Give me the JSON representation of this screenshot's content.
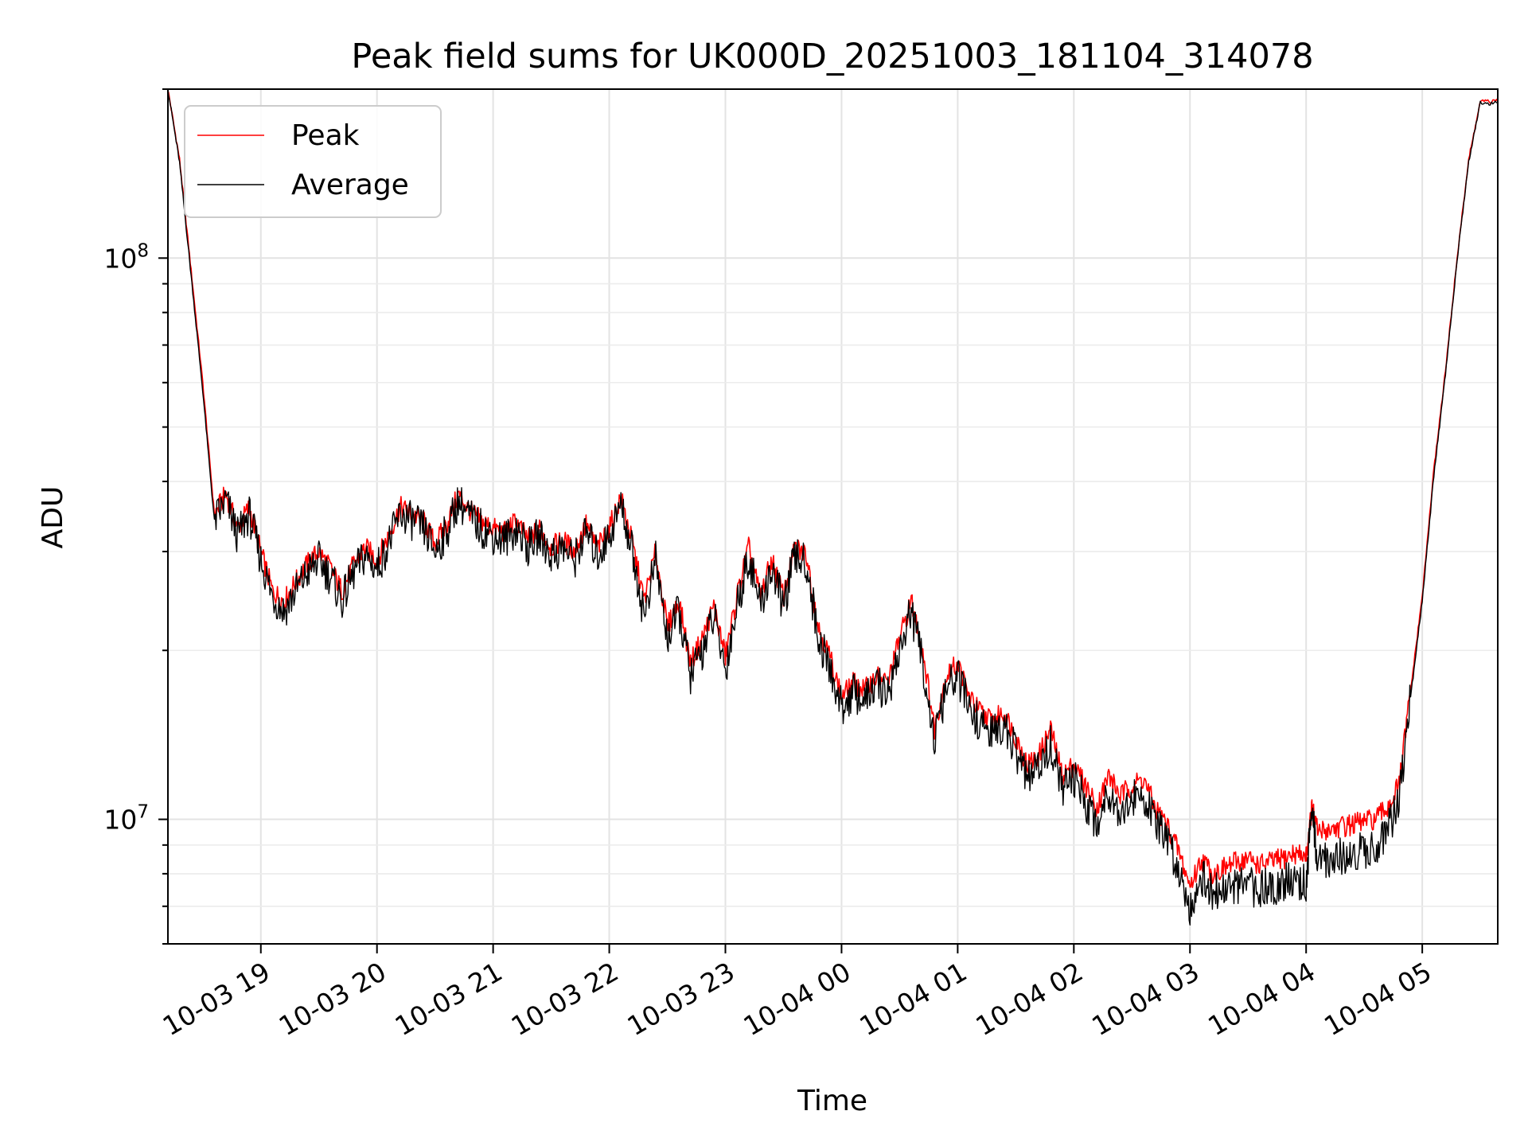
{
  "chart_data": {
    "type": "line",
    "title": "Peak field sums for UK000D_20251003_181104_314078",
    "xlabel": "Time",
    "ylabel": "ADU",
    "yscale": "log",
    "ylim": [
      6000000,
      200000000
    ],
    "xlim": [
      18.2,
      29.65
    ],
    "grid": true,
    "legend_position": "top-left",
    "x_ticks": [
      {
        "value": 19,
        "label": "10-03 19"
      },
      {
        "value": 20,
        "label": "10-03 20"
      },
      {
        "value": 21,
        "label": "10-03 21"
      },
      {
        "value": 22,
        "label": "10-03 22"
      },
      {
        "value": 23,
        "label": "10-03 23"
      },
      {
        "value": 24,
        "label": "10-04 00"
      },
      {
        "value": 25,
        "label": "10-04 01"
      },
      {
        "value": 26,
        "label": "10-04 02"
      },
      {
        "value": 27,
        "label": "10-04 03"
      },
      {
        "value": 28,
        "label": "10-04 04"
      },
      {
        "value": 29,
        "label": "10-04 05"
      }
    ],
    "y_ticks": [
      {
        "value": 10000000,
        "label": "10",
        "exp": "7"
      },
      {
        "value": 100000000,
        "label": "10",
        "exp": "8"
      }
    ],
    "x_unit_note": "hours since 2025-10-03 00:00",
    "series": [
      {
        "name": "Peak",
        "color": "#ff0000",
        "x": [
          18.2,
          18.3,
          18.4,
          18.5,
          18.6,
          18.7,
          18.8,
          18.9,
          19.0,
          19.1,
          19.2,
          19.3,
          19.4,
          19.5,
          19.6,
          19.7,
          19.8,
          19.9,
          20.0,
          20.1,
          20.2,
          20.3,
          20.4,
          20.5,
          20.6,
          20.7,
          20.8,
          20.9,
          21.0,
          21.1,
          21.2,
          21.3,
          21.4,
          21.5,
          21.6,
          21.7,
          21.8,
          21.9,
          22.0,
          22.1,
          22.2,
          22.3,
          22.4,
          22.5,
          22.6,
          22.7,
          22.8,
          22.9,
          23.0,
          23.1,
          23.2,
          23.3,
          23.4,
          23.5,
          23.6,
          23.7,
          23.8,
          23.9,
          24.0,
          24.1,
          24.2,
          24.3,
          24.4,
          24.5,
          24.6,
          24.7,
          24.8,
          24.9,
          25.0,
          25.1,
          25.2,
          25.3,
          25.4,
          25.5,
          25.6,
          25.7,
          25.8,
          25.9,
          26.0,
          26.1,
          26.2,
          26.3,
          26.4,
          26.5,
          26.6,
          26.7,
          26.8,
          26.9,
          27.0,
          27.1,
          27.2,
          27.3,
          27.4,
          27.5,
          27.6,
          27.7,
          27.8,
          27.9,
          28.0,
          28.05,
          28.1,
          28.2,
          28.3,
          28.4,
          28.5,
          28.6,
          28.7,
          28.8,
          28.9,
          29.0,
          29.1,
          29.2,
          29.3,
          29.4,
          29.5,
          29.65
        ],
        "values": [
          200000000,
          150000000,
          95000000,
          60000000,
          35000000,
          38000000,
          33000000,
          36000000,
          30000000,
          25500000,
          24500000,
          26500000,
          28500000,
          30000000,
          28000000,
          25500000,
          28500000,
          30500000,
          29000000,
          32000000,
          36000000,
          35000000,
          34000000,
          31000000,
          33500000,
          38000000,
          35500000,
          34000000,
          33000000,
          32500000,
          34000000,
          31500000,
          33000000,
          30500000,
          31500000,
          30000000,
          33500000,
          30500000,
          33000000,
          37500000,
          31000000,
          24500000,
          30000000,
          22000000,
          24500000,
          19000000,
          21000000,
          24000000,
          19500000,
          25000000,
          30500000,
          25000000,
          29000000,
          25000000,
          30500000,
          29500000,
          22000000,
          19500000,
          16500000,
          17500000,
          17000000,
          18000000,
          17500000,
          21000000,
          24500000,
          20000000,
          14500000,
          18000000,
          19000000,
          16500000,
          15500000,
          15000000,
          15500000,
          14000000,
          12500000,
          13000000,
          14500000,
          12000000,
          12500000,
          11500000,
          10500000,
          12000000,
          11000000,
          11500000,
          11800000,
          10500000,
          9800000,
          8800000,
          7600000,
          8500000,
          8000000,
          8200000,
          8400000,
          8500000,
          8300000,
          8400000,
          8500000,
          8700000,
          8600000,
          10500000,
          9500000,
          9600000,
          9700000,
          9800000,
          9900000,
          10000000,
          10500000,
          11500000,
          17000000,
          25000000,
          42000000,
          63000000,
          100000000,
          150000000,
          190000000,
          190000000
        ]
      },
      {
        "name": "Average",
        "color": "#000000",
        "x": [
          18.2,
          18.3,
          18.4,
          18.5,
          18.6,
          18.7,
          18.8,
          18.9,
          19.0,
          19.1,
          19.2,
          19.3,
          19.4,
          19.5,
          19.6,
          19.7,
          19.8,
          19.9,
          20.0,
          20.1,
          20.2,
          20.3,
          20.4,
          20.5,
          20.6,
          20.7,
          20.8,
          20.9,
          21.0,
          21.1,
          21.2,
          21.3,
          21.4,
          21.5,
          21.6,
          21.7,
          21.8,
          21.9,
          22.0,
          22.1,
          22.2,
          22.3,
          22.4,
          22.5,
          22.6,
          22.7,
          22.8,
          22.9,
          23.0,
          23.1,
          23.2,
          23.3,
          23.4,
          23.5,
          23.6,
          23.7,
          23.8,
          23.9,
          24.0,
          24.1,
          24.2,
          24.3,
          24.4,
          24.5,
          24.6,
          24.7,
          24.8,
          24.9,
          25.0,
          25.1,
          25.2,
          25.3,
          25.4,
          25.5,
          25.6,
          25.7,
          25.8,
          25.9,
          26.0,
          26.1,
          26.2,
          26.3,
          26.4,
          26.5,
          26.6,
          26.7,
          26.8,
          26.9,
          27.0,
          27.1,
          27.2,
          27.3,
          27.4,
          27.5,
          27.6,
          27.7,
          27.8,
          27.9,
          28.0,
          28.05,
          28.1,
          28.2,
          28.3,
          28.4,
          28.5,
          28.6,
          28.7,
          28.8,
          28.9,
          29.0,
          29.1,
          29.2,
          29.3,
          29.4,
          29.5,
          29.65
        ],
        "values": [
          200000000,
          148000000,
          93000000,
          58000000,
          34000000,
          37000000,
          32000000,
          35000000,
          29000000,
          25000000,
          23500000,
          25500000,
          27500000,
          29000000,
          27000000,
          24500000,
          27500000,
          29500000,
          28000000,
          31000000,
          35000000,
          34000000,
          33000000,
          30000000,
          32500000,
          37000000,
          34500000,
          33000000,
          32000000,
          31500000,
          33000000,
          30500000,
          32000000,
          29500000,
          30500000,
          29000000,
          32500000,
          29500000,
          32000000,
          36500000,
          30000000,
          23000000,
          29000000,
          21000000,
          23500000,
          18000000,
          20000000,
          23000000,
          18500000,
          24000000,
          29500000,
          24000000,
          28000000,
          24000000,
          29500000,
          28500000,
          21000000,
          18500000,
          15800000,
          16800000,
          16300000,
          17300000,
          16800000,
          20000000,
          23500000,
          19000000,
          13700000,
          17000000,
          18000000,
          15700000,
          14700000,
          14200000,
          14700000,
          13200000,
          11800000,
          12300000,
          13700000,
          11300000,
          11800000,
          10800000,
          9800000,
          11300000,
          10300000,
          10800000,
          11100000,
          9800000,
          9200000,
          8200000,
          7000000,
          7900000,
          7400000,
          7500000,
          7600000,
          7600000,
          7500000,
          7600000,
          7700000,
          7800000,
          7700000,
          10300000,
          8400000,
          8500000,
          8600000,
          8700000,
          8800000,
          9000000,
          9500000,
          10700000,
          16500000,
          24500000,
          41000000,
          62000000,
          99000000,
          149000000,
          189000000,
          189000000
        ]
      }
    ]
  }
}
